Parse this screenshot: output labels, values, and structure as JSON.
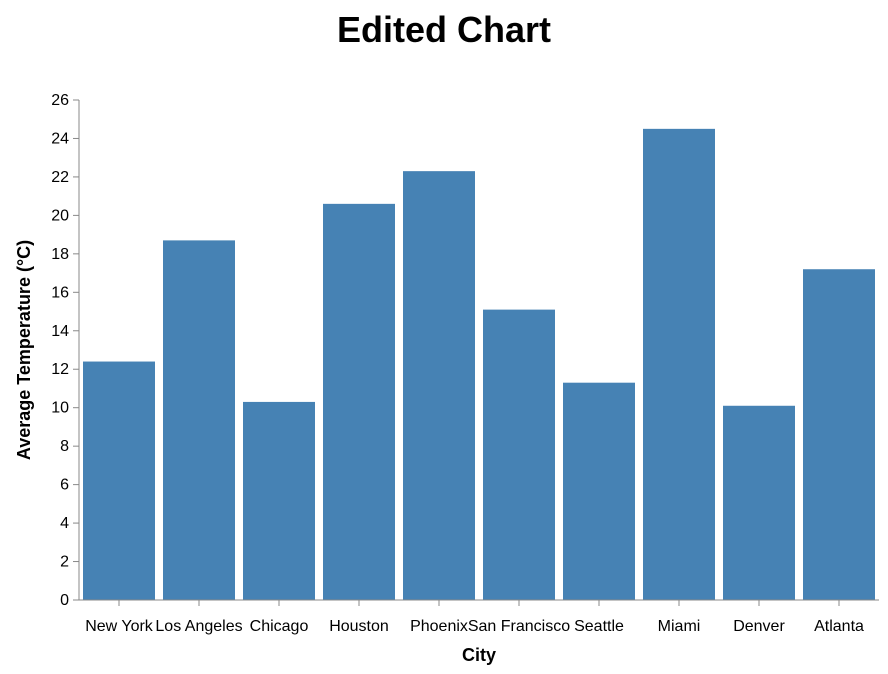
{
  "chart_data": {
    "type": "bar",
    "title": "Edited Chart",
    "xlabel": "City",
    "ylabel": "Average Temperature (°C)",
    "categories": [
      "New York",
      "Los Angeles",
      "Chicago",
      "Houston",
      "Phoenix",
      "San Francisco",
      "Seattle",
      "Miami",
      "Denver",
      "Atlanta"
    ],
    "values": [
      12.4,
      18.7,
      10.3,
      20.6,
      22.3,
      15.1,
      11.3,
      24.5,
      10.1,
      17.2
    ],
    "ylim": [
      0,
      26
    ],
    "yticks": [
      0,
      2,
      4,
      6,
      8,
      10,
      12,
      14,
      16,
      18,
      20,
      22,
      24,
      26
    ],
    "grid": false,
    "legend": "none",
    "bar_color": "#4682b4"
  }
}
